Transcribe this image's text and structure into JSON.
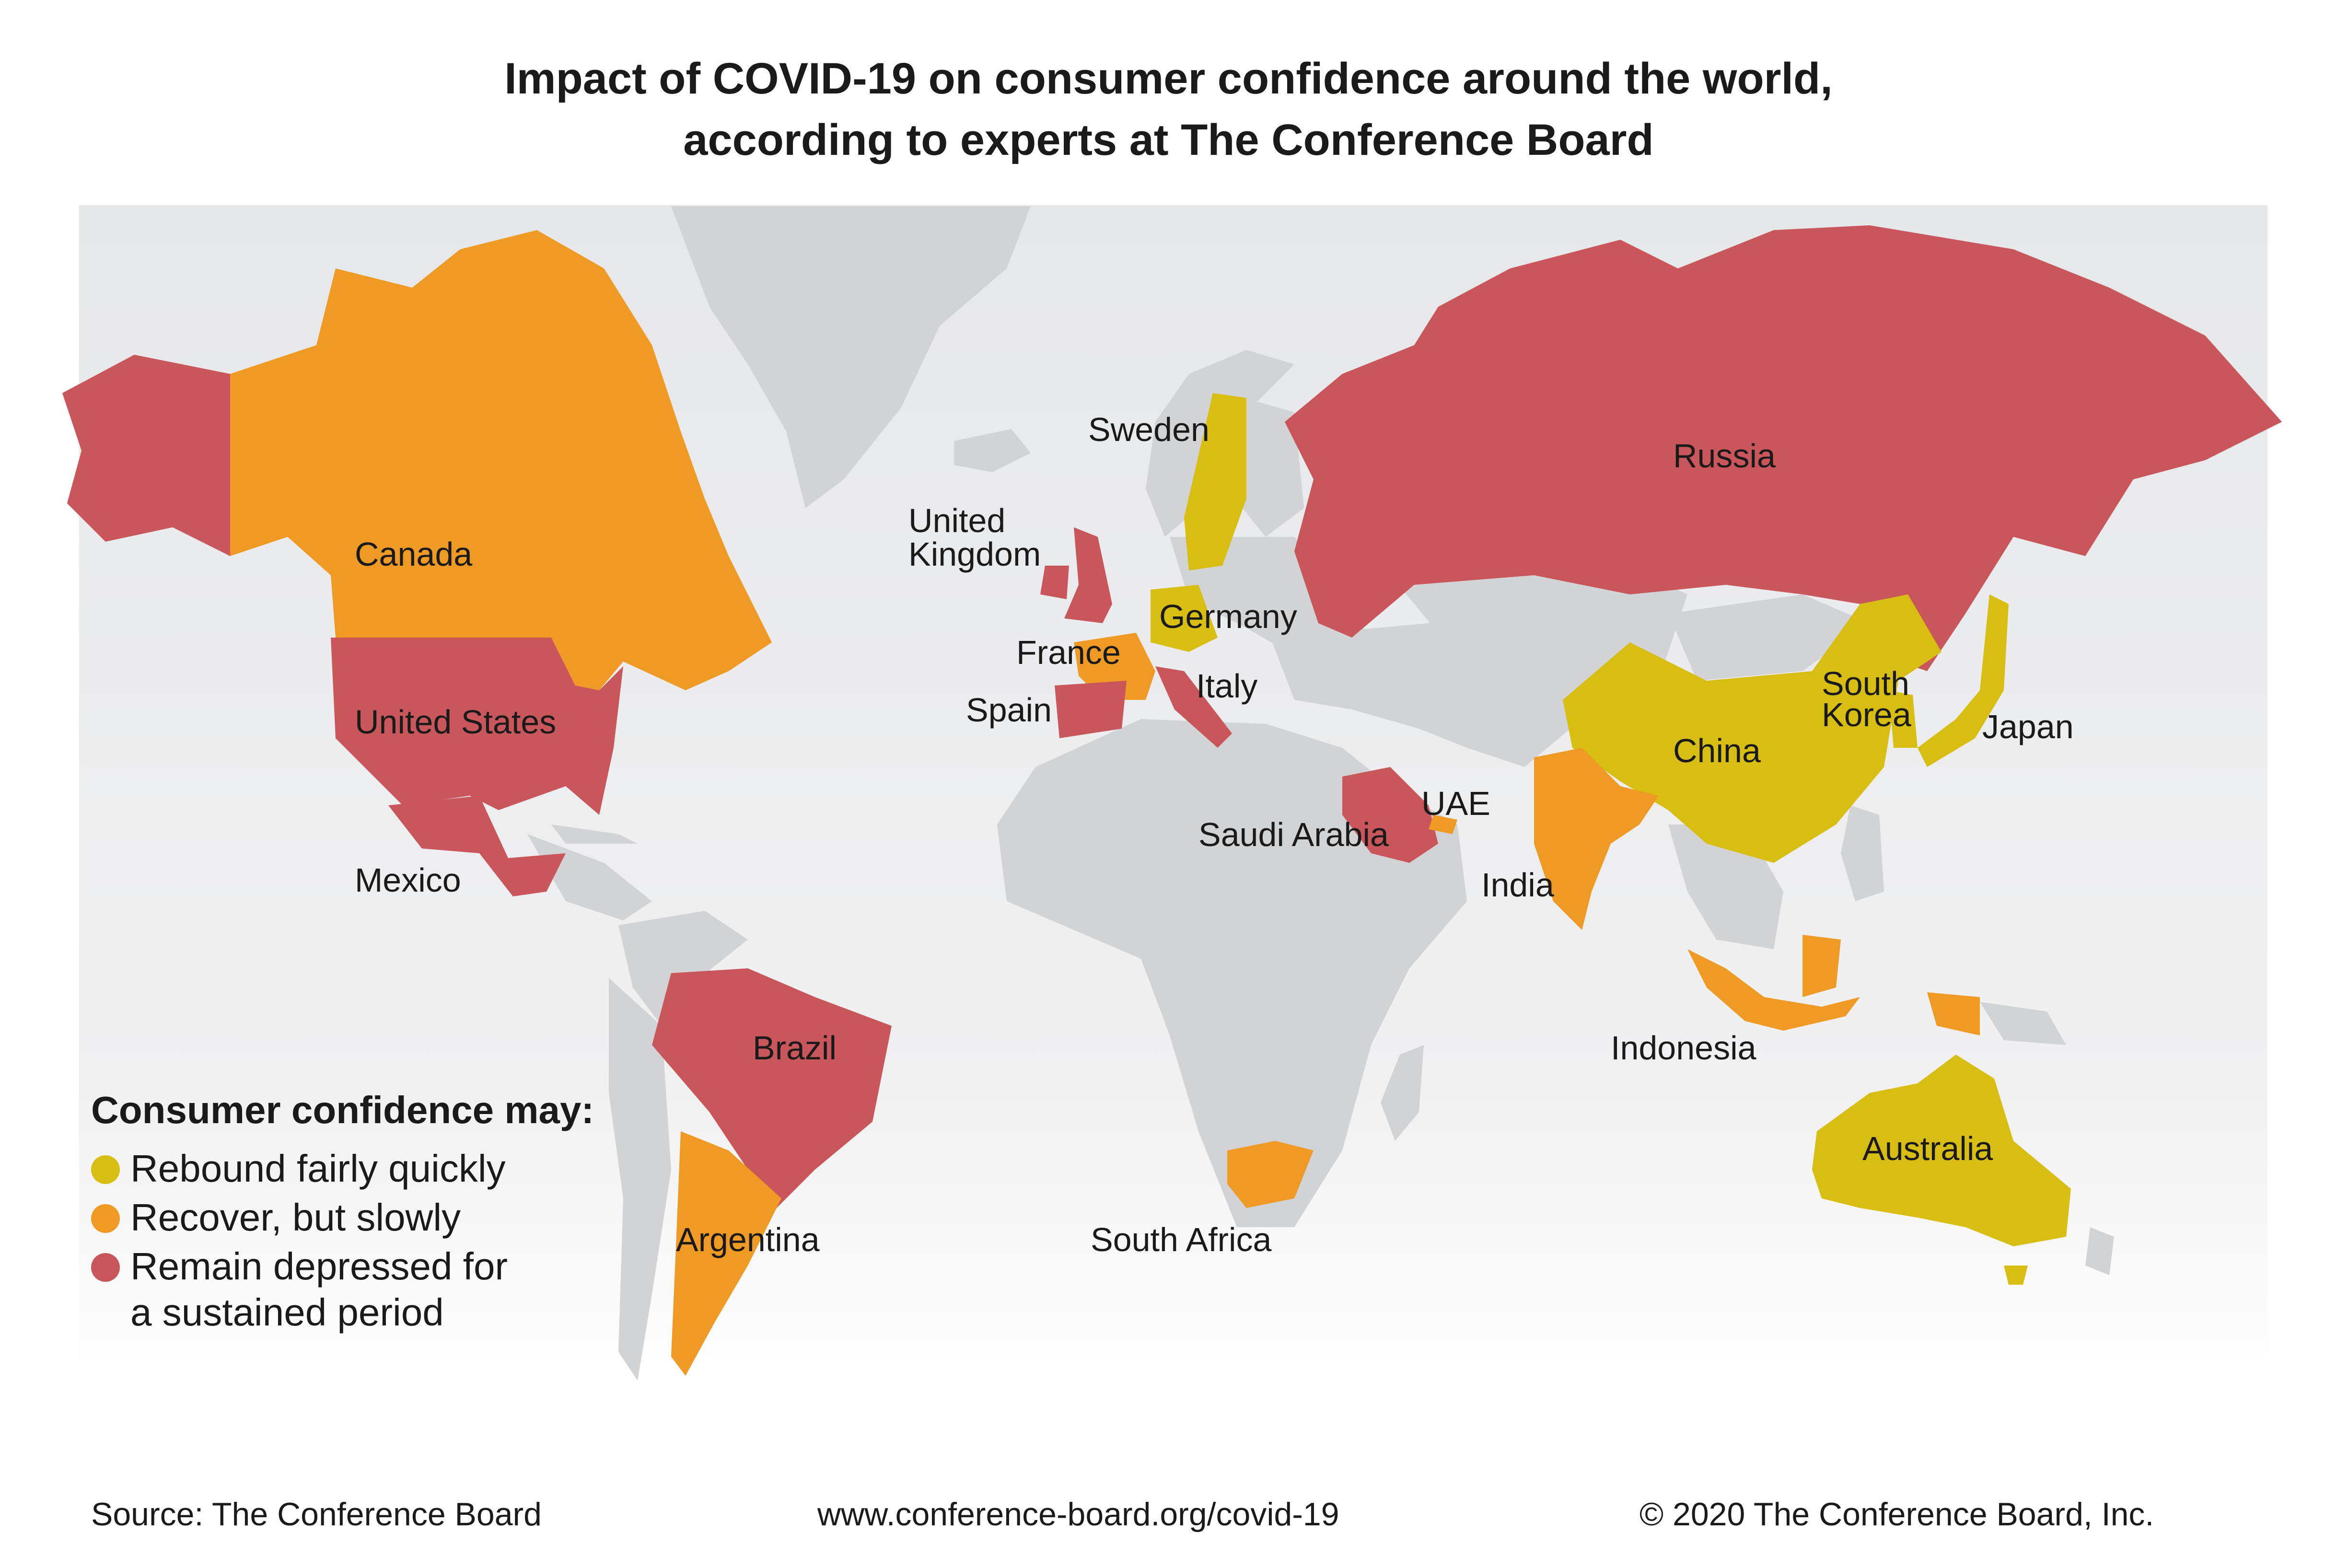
{
  "title": {
    "line1": "Impact of COVID-19 on consumer confidence around the world,",
    "line2": "according to experts at The Conference Board"
  },
  "colors": {
    "rebound": "#d8bd12",
    "recover": "#ee9a25",
    "depressed": "#c9565b",
    "other": "#d2d3d5",
    "background": "#e9eaec"
  },
  "legend": {
    "title": "Consumer confidence may:",
    "items": [
      {
        "key": "rebound",
        "lines": [
          "Rebound fairly quickly"
        ]
      },
      {
        "key": "recover",
        "lines": [
          "Recover, but slowly"
        ]
      },
      {
        "key": "depressed",
        "lines": [
          "Remain depressed for",
          "a sustained period"
        ]
      }
    ]
  },
  "countries": [
    {
      "name": "Canada",
      "category": "recover"
    },
    {
      "name": "United States",
      "category": "depressed"
    },
    {
      "name": "Mexico",
      "category": "depressed"
    },
    {
      "name": "Brazil",
      "category": "depressed"
    },
    {
      "name": "Argentina",
      "category": "recover"
    },
    {
      "name": "United Kingdom",
      "category": "depressed"
    },
    {
      "name": "Sweden",
      "category": "rebound"
    },
    {
      "name": "Germany",
      "category": "rebound"
    },
    {
      "name": "France",
      "category": "recover"
    },
    {
      "name": "Spain",
      "category": "depressed"
    },
    {
      "name": "Italy",
      "category": "depressed"
    },
    {
      "name": "Russia",
      "category": "depressed"
    },
    {
      "name": "China",
      "category": "rebound"
    },
    {
      "name": "South Korea",
      "category": "rebound"
    },
    {
      "name": "Japan",
      "category": "rebound"
    },
    {
      "name": "Saudi Arabia",
      "category": "depressed"
    },
    {
      "name": "UAE",
      "category": "recover"
    },
    {
      "name": "India",
      "category": "recover"
    },
    {
      "name": "Indonesia",
      "category": "recover"
    },
    {
      "name": "Australia",
      "category": "rebound"
    },
    {
      "name": "South Africa",
      "category": "recover"
    }
  ],
  "footer": {
    "source": "Source: The Conference Board",
    "url": "www.conference-board.org/covid-19",
    "copyright": "© 2020 The Conference Board, Inc."
  }
}
